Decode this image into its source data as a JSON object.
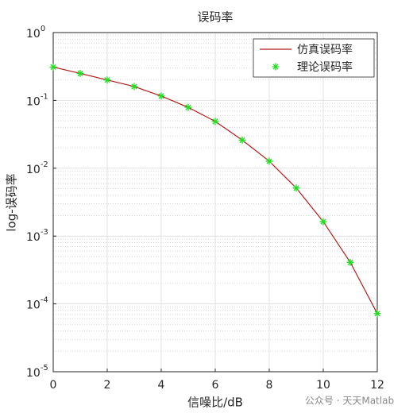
{
  "chart_data": {
    "type": "line",
    "title": "误码率",
    "xlabel": "信噪比/dB",
    "ylabel": "log-误码率",
    "x": [
      0,
      1,
      2,
      3,
      4,
      5,
      6,
      7,
      8,
      9,
      10,
      11,
      12
    ],
    "series": [
      {
        "name": "仿真误码率",
        "color": "#b31b1b",
        "style": "line",
        "values": [
          0.31,
          0.25,
          0.2,
          0.16,
          0.116,
          0.079,
          0.049,
          0.026,
          0.0127,
          0.0051,
          0.00163,
          0.00041,
          7.2e-05
        ]
      },
      {
        "name": "理论误码率",
        "color": "#22dd22",
        "style": "marker",
        "values": [
          0.31,
          0.25,
          0.2,
          0.16,
          0.116,
          0.079,
          0.049,
          0.026,
          0.0127,
          0.0051,
          0.00163,
          0.00041,
          7.2e-05
        ]
      }
    ],
    "xlim": [
      0,
      12
    ],
    "xticks": [
      0,
      2,
      4,
      6,
      8,
      10,
      12
    ],
    "ylim": [
      1e-05,
      1
    ],
    "ylog": true,
    "yticks": [
      {
        "value": 1e-05,
        "label": "10",
        "exponent": "-5"
      },
      {
        "value": 0.0001,
        "label": "10",
        "exponent": "-4"
      },
      {
        "value": 0.001,
        "label": "10",
        "exponent": "-3"
      },
      {
        "value": 0.01,
        "label": "10",
        "exponent": "-2"
      },
      {
        "value": 0.1,
        "label": "10",
        "exponent": "-1"
      },
      {
        "value": 1,
        "label": "10",
        "exponent": "0"
      }
    ],
    "grid": true,
    "legend": "northeast"
  },
  "watermark": "公众号 · 天天Matlab"
}
